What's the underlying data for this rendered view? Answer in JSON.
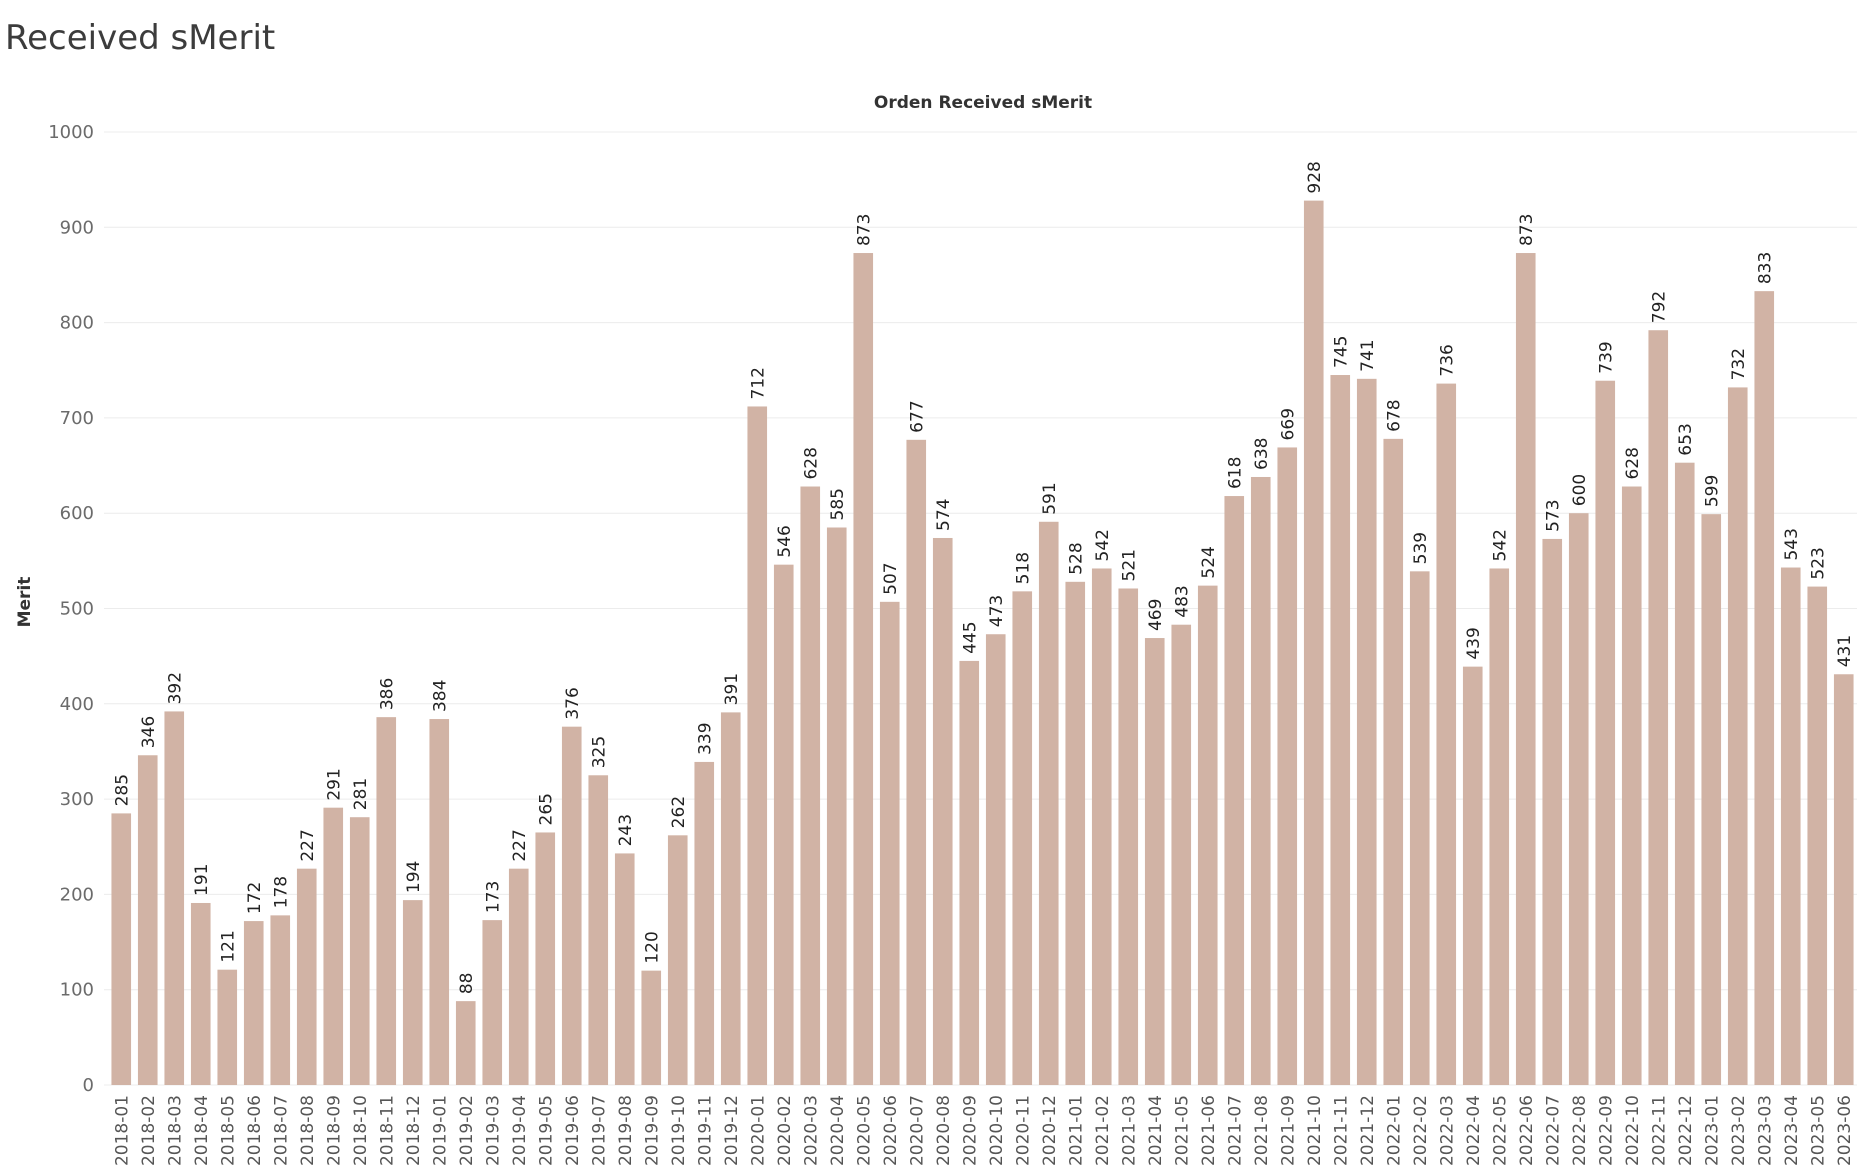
{
  "page": {
    "title": "Received sMerit"
  },
  "chart_data": {
    "type": "bar",
    "title": "Orden Received sMerit",
    "xlabel": "",
    "ylabel": "Merit",
    "ylim": [
      0,
      1000
    ],
    "yticks": [
      0,
      100,
      200,
      300,
      400,
      500,
      600,
      700,
      800,
      900,
      1000
    ],
    "grid": true,
    "bar_color": "#d1b3a5",
    "categories": [
      "2018-01",
      "2018-02",
      "2018-03",
      "2018-04",
      "2018-05",
      "2018-06",
      "2018-07",
      "2018-08",
      "2018-09",
      "2018-10",
      "2018-11",
      "2018-12",
      "2019-01",
      "2019-02",
      "2019-03",
      "2019-04",
      "2019-05",
      "2019-06",
      "2019-07",
      "2019-08",
      "2019-09",
      "2019-10",
      "2019-11",
      "2019-12",
      "2020-01",
      "2020-02",
      "2020-03",
      "2020-04",
      "2020-05",
      "2020-06",
      "2020-07",
      "2020-08",
      "2020-09",
      "2020-10",
      "2020-11",
      "2020-12",
      "2021-01",
      "2021-02",
      "2021-03",
      "2021-04",
      "2021-05",
      "2021-06",
      "2021-07",
      "2021-08",
      "2021-09",
      "2021-10",
      "2021-11",
      "2021-12",
      "2022-01",
      "2022-02",
      "2022-03",
      "2022-04",
      "2022-05",
      "2022-06",
      "2022-07",
      "2022-08",
      "2022-09",
      "2022-10",
      "2022-11",
      "2022-12",
      "2023-01",
      "2023-02",
      "2023-03",
      "2023-04",
      "2023-05",
      "2023-06"
    ],
    "values": [
      285,
      346,
      392,
      191,
      121,
      172,
      178,
      227,
      291,
      281,
      386,
      194,
      384,
      88,
      173,
      227,
      265,
      376,
      325,
      243,
      120,
      262,
      339,
      391,
      712,
      546,
      628,
      585,
      873,
      507,
      677,
      574,
      445,
      473,
      518,
      591,
      528,
      542,
      521,
      469,
      483,
      524,
      618,
      638,
      669,
      928,
      745,
      741,
      678,
      539,
      736,
      439,
      542,
      873,
      573,
      600,
      739,
      628,
      792,
      653,
      599,
      732,
      833,
      543,
      523,
      431
    ]
  }
}
